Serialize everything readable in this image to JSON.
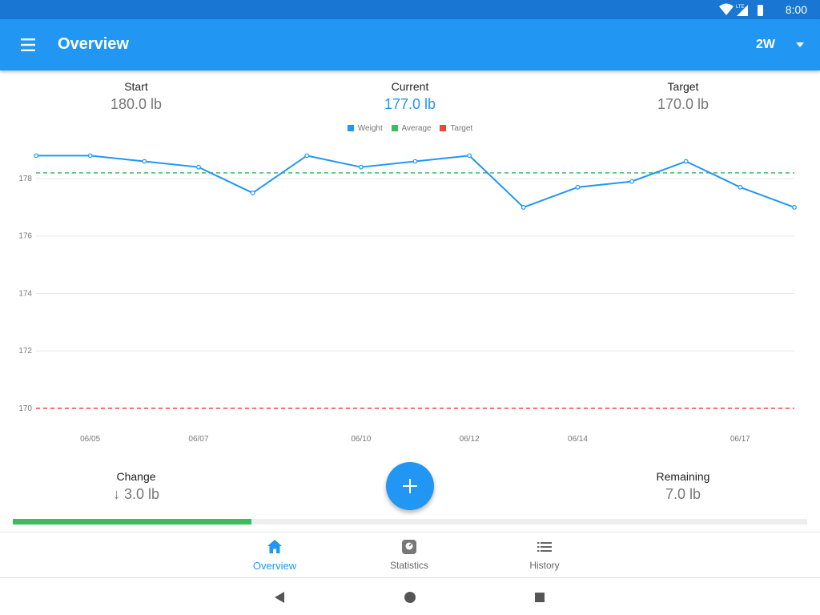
{
  "status_bar": {
    "time": "8:00",
    "network": "LTE",
    "icons": [
      "wifi-icon",
      "cell-signal-icon",
      "battery-icon"
    ]
  },
  "app_bar": {
    "title": "Overview",
    "range_selected": "2W",
    "icons": [
      "menu-icon",
      "dropdown-arrow-icon"
    ]
  },
  "summary": {
    "start": {
      "label": "Start",
      "value": "180.0 lb"
    },
    "current": {
      "label": "Current",
      "value": "177.0 lb"
    },
    "target": {
      "label": "Target",
      "value": "170.0 lb"
    },
    "change": {
      "label": "Change",
      "value": "↓ 3.0 lb"
    },
    "remaining": {
      "label": "Remaining",
      "value": "7.0 lb"
    }
  },
  "progress": {
    "fraction": 0.3
  },
  "fab": {
    "icon": "plus-icon"
  },
  "colors": {
    "primary": "#2196F3",
    "primary_dark": "#1976D2",
    "weight": "#2196F3",
    "average": "#3DBB61",
    "target": "#F44336",
    "progress": "#3DBB61"
  },
  "chart_data": {
    "type": "line",
    "title": "",
    "xlabel": "",
    "ylabel": "",
    "x": [
      "06/04",
      "06/05",
      "06/06",
      "06/07",
      "06/08",
      "06/09",
      "06/10",
      "06/11",
      "06/12",
      "06/13",
      "06/14",
      "06/15",
      "06/16",
      "06/17",
      "06/18"
    ],
    "x_tick_labels": [
      "06/05",
      "06/07",
      "06/10",
      "06/12",
      "06/14",
      "06/17"
    ],
    "y_ticks": [
      170,
      172,
      174,
      176,
      178
    ],
    "ylim": [
      169.3,
      179.2
    ],
    "grid": true,
    "legend_position": "top-center",
    "series": [
      {
        "name": "Weight",
        "color": "#2196F3",
        "style": "solid-markers",
        "values": [
          178.8,
          178.8,
          178.6,
          178.4,
          177.5,
          178.8,
          178.4,
          178.6,
          178.8,
          177.0,
          177.7,
          177.9,
          178.6,
          177.7,
          177.0
        ]
      },
      {
        "name": "Average",
        "color": "#3DBB61",
        "style": "dashed",
        "value": 178.2
      },
      {
        "name": "Target",
        "color": "#F44336",
        "style": "dashed",
        "value": 170.0
      }
    ]
  },
  "bottom_nav": [
    {
      "label": "Overview",
      "icon": "home-icon",
      "active": true
    },
    {
      "label": "Statistics",
      "icon": "scale-icon",
      "active": false
    },
    {
      "label": "History",
      "icon": "list-icon",
      "active": false
    }
  ],
  "system_nav": [
    "back-icon",
    "home-circle-icon",
    "recents-icon"
  ]
}
